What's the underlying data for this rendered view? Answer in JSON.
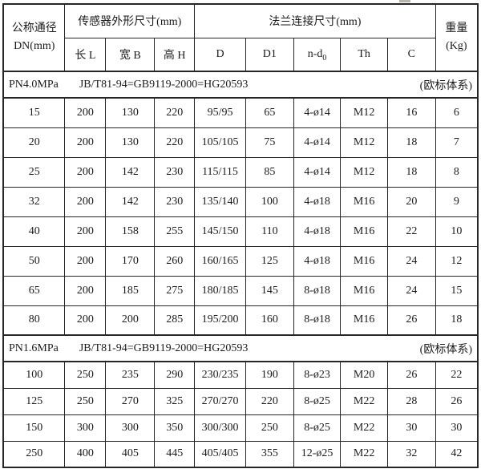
{
  "page": {
    "background": "#ffffff",
    "border_color": "#262626",
    "text_color": "#1b1b1b"
  },
  "table": {
    "header": {
      "dn": {
        "line1": "公称通径",
        "line2": "DN(mm)"
      },
      "sensor_group": "传感器外形尺寸(mm)",
      "flange_group": "法兰连接尺寸(mm)",
      "weight": {
        "line1": "重量",
        "line2": "(Kg)"
      },
      "sensor_cols": {
        "l": "长 L",
        "b": "宽 B",
        "h": "高 H"
      },
      "flange_cols": {
        "d": "D",
        "d1": "D1",
        "nd_base": "n-d",
        "nd_sub": "0",
        "th": "Th",
        "c": "C"
      }
    },
    "sections": [
      {
        "pressure": "PN4.0MPa",
        "standard": "JB/T81-94=GB9119-2000=HG20593",
        "note": "(欧标体系)",
        "rows": [
          [
            "15",
            "200",
            "130",
            "220",
            "95/95",
            "65",
            "4-ø14",
            "M12",
            "16",
            "6"
          ],
          [
            "20",
            "200",
            "130",
            "220",
            "105/105",
            "75",
            "4-ø14",
            "M12",
            "18",
            "7"
          ],
          [
            "25",
            "200",
            "142",
            "230",
            "115/115",
            "85",
            "4-ø14",
            "M12",
            "18",
            "8"
          ],
          [
            "32",
            "200",
            "142",
            "230",
            "135/140",
            "100",
            "4-ø18",
            "M16",
            "20",
            "9"
          ],
          [
            "40",
            "200",
            "158",
            "255",
            "145/150",
            "110",
            "4-ø18",
            "M16",
            "22",
            "10"
          ],
          [
            "50",
            "200",
            "170",
            "260",
            "160/165",
            "125",
            "4-ø18",
            "M16",
            "24",
            "12"
          ],
          [
            "65",
            "200",
            "185",
            "275",
            "180/185",
            "145",
            "8-ø18",
            "M16",
            "24",
            "15"
          ],
          [
            "80",
            "200",
            "200",
            "285",
            "195/200",
            "160",
            "8-ø18",
            "M16",
            "26",
            "18"
          ]
        ]
      },
      {
        "pressure": "PN1.6MPa",
        "standard": "JB/T81-94=GB9119-2000=HG20593",
        "note": "(欧标体系)",
        "rows": [
          [
            "100",
            "250",
            "235",
            "290",
            "230/235",
            "190",
            "8-ø23",
            "M20",
            "26",
            "22"
          ],
          [
            "125",
            "250",
            "270",
            "325",
            "270/270",
            "220",
            "8-ø25",
            "M22",
            "28",
            "26"
          ],
          [
            "150",
            "300",
            "300",
            "350",
            "300/300",
            "250",
            "8-ø25",
            "M22",
            "30",
            "30"
          ],
          [
            "250",
            "400",
            "405",
            "445",
            "405/405",
            "355",
            "12-ø25",
            "M22",
            "32",
            "42"
          ]
        ]
      }
    ]
  }
}
